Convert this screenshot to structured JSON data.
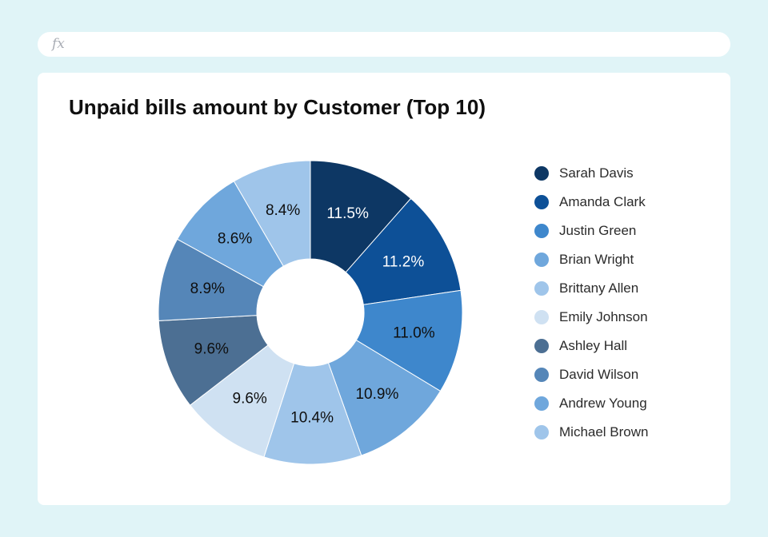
{
  "formula_bar": {
    "icon": "fx-icon",
    "icon_text": "fx"
  },
  "chart_data": {
    "type": "pie",
    "variant": "donut",
    "title": "Unpaid bills amount by Customer (Top 10)",
    "categories": [
      "Sarah Davis",
      "Amanda Clark",
      "Justin Green",
      "Brian Wright",
      "Brittany Allen",
      "Emily Johnson",
      "Ashley Hall",
      "David Wilson",
      "Andrew Young",
      "Michael Brown"
    ],
    "values": [
      11.5,
      11.2,
      11.0,
      10.9,
      10.4,
      9.6,
      9.6,
      8.9,
      8.6,
      8.4
    ],
    "labels": [
      "11.5%",
      "11.2%",
      "11.0%",
      "10.9%",
      "10.4%",
      "9.6%",
      "9.6%",
      "8.9%",
      "8.6%",
      "8.4%"
    ],
    "colors": [
      "#0d3764",
      "#0d5097",
      "#3e87cc",
      "#6fa7dc",
      "#9fc5ea",
      "#cfe1f2",
      "#4c6f93",
      "#5586b8",
      "#6fa7dc",
      "#9fc5ea"
    ],
    "label_colors": [
      "#ffffff",
      "#ffffff",
      "#0f0f0f",
      "#0f0f0f",
      "#0f0f0f",
      "#0f0f0f",
      "#0f0f0f",
      "#0f0f0f",
      "#0f0f0f",
      "#0f0f0f"
    ],
    "legend_position": "right",
    "start_angle": "top, clockwise"
  }
}
